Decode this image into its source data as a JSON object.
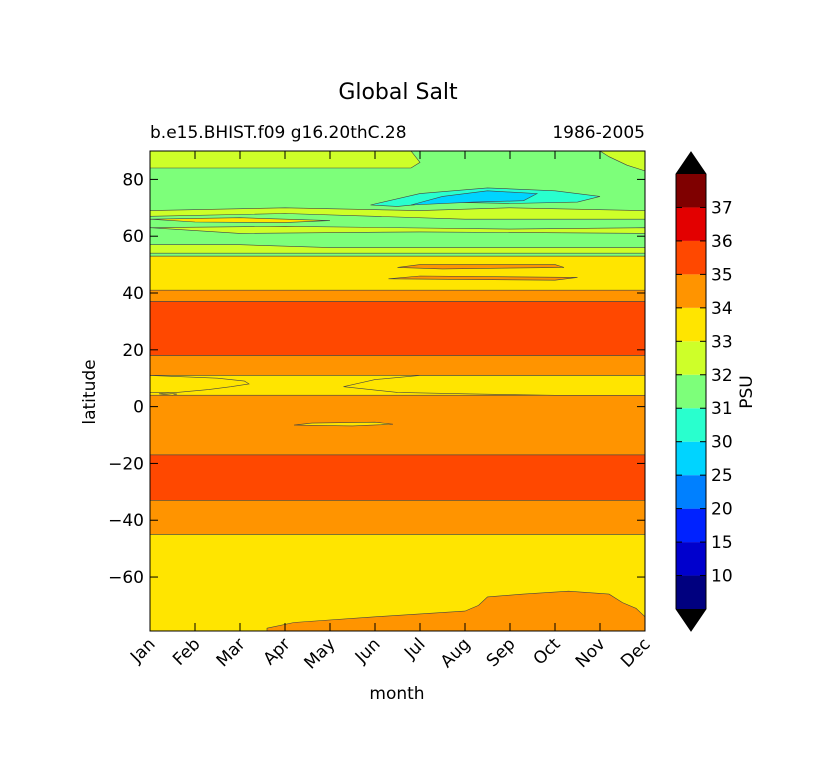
{
  "chart_data": {
    "type": "heatmap",
    "title": "Global Salt",
    "subtitle_left": "b.e15.BHIST.f09 g16.20thC.28",
    "subtitle_right": "1986-2005",
    "xlabel": "month",
    "ylabel": "latitude",
    "x_ticks": [
      "Jan",
      "Feb",
      "Mar",
      "Apr",
      "May",
      "Jun",
      "Jul",
      "Aug",
      "Sep",
      "Oct",
      "Nov",
      "Dec"
    ],
    "y_ticks": [
      80,
      60,
      40,
      20,
      0,
      -20,
      -40,
      -60
    ],
    "ylim": [
      -79,
      90
    ],
    "xlim": [
      0,
      11
    ],
    "colorbar": {
      "label": "PSU",
      "levels": [
        10,
        15,
        20,
        25,
        30,
        31,
        32,
        33,
        34,
        35,
        36,
        37
      ],
      "colors": [
        "#00007f",
        "#0000cd",
        "#0022ff",
        "#0080ff",
        "#00d4ff",
        "#29ffce",
        "#7dff7a",
        "#ceff29",
        "#ffe500",
        "#ff9400",
        "#ff4800",
        "#e30000",
        "#7f0000"
      ],
      "extend_under_color": "#000000",
      "extend_over_color": "#000000"
    },
    "bands": [
      {
        "lat_min": 37,
        "lat_max": 41,
        "value_class": "34-35"
      },
      {
        "lat_min": 18,
        "lat_max": 37,
        "value_class": "35-36"
      },
      {
        "lat_min": 11,
        "lat_max": 18,
        "value_class": "34-35"
      },
      {
        "lat_min": 4,
        "lat_max": 11,
        "value_class": "33-34"
      },
      {
        "lat_min": -17,
        "lat_max": 4,
        "value_class": "34-35"
      },
      {
        "lat_min": -33,
        "lat_max": -17,
        "value_class": "35-36"
      },
      {
        "lat_min": -45,
        "lat_max": -33,
        "value_class": "34-35"
      },
      {
        "lat_min": -79,
        "lat_max": -45,
        "value_class": "33-34"
      },
      {
        "lat_min": 41,
        "lat_max": 53,
        "value_class": "33-34"
      },
      {
        "lat_min": 53,
        "lat_max": 90,
        "value_class": "31-32"
      }
    ]
  }
}
